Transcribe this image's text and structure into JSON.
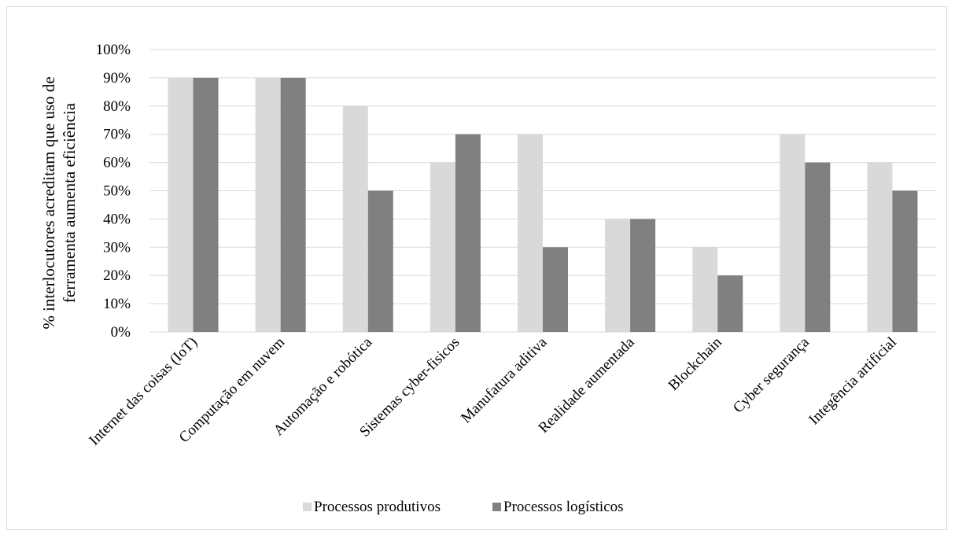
{
  "chart_data": {
    "type": "bar",
    "title": "",
    "xlabel": "",
    "ylabel_lines": [
      "% interlocutores acreditam que uso de",
      "ferramenta aumenta eficiência"
    ],
    "ylim": [
      0,
      100
    ],
    "yticks": [
      0,
      10,
      20,
      30,
      40,
      50,
      60,
      70,
      80,
      90,
      100
    ],
    "ytick_labels": [
      "0%",
      "10%",
      "20%",
      "30%",
      "40%",
      "50%",
      "60%",
      "70%",
      "80%",
      "90%",
      "100%"
    ],
    "categories": [
      "Internet das coisas (IoT)",
      "Computação em nuvem",
      "Automação e robótica",
      "Sistemas cyber-fisicos",
      "Manufatura aditiva",
      "Realidade aumentada",
      "Blockchain",
      "Cyber segurança",
      "Integência artificial"
    ],
    "series": [
      {
        "name": "Processos produtivos",
        "color": "#d9d9d9",
        "values": [
          90,
          90,
          80,
          60,
          70,
          40,
          30,
          70,
          60
        ]
      },
      {
        "name": "Processos logísticos",
        "color": "#808080",
        "values": [
          90,
          90,
          50,
          70,
          30,
          40,
          20,
          60,
          50
        ]
      }
    ],
    "grid": true,
    "legend_position": "bottom"
  }
}
